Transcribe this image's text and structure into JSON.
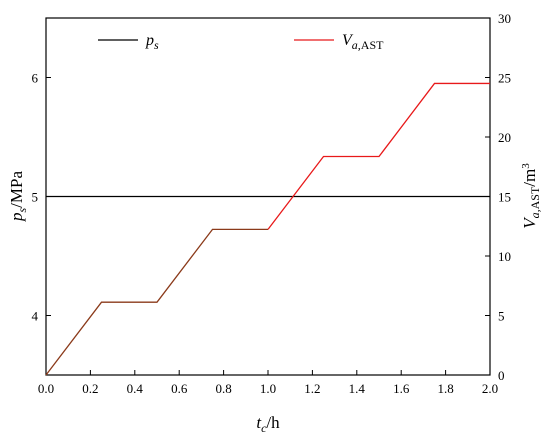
{
  "chart_data": {
    "type": "line",
    "x_axis": {
      "range": [
        0,
        2
      ],
      "ticks": [
        0,
        0.2,
        0.4,
        0.6,
        0.8,
        1.0,
        1.2,
        1.4,
        1.6,
        1.8,
        2.0
      ],
      "tick_labels": [
        "0.0",
        "0.2",
        "0.4",
        "0.6",
        "0.8",
        "1.0",
        "1.2",
        "1.4",
        "1.6",
        "1.8",
        "2.0"
      ],
      "label_main": "t",
      "label_sub": "c",
      "label_suffix": "/h"
    },
    "y_left": {
      "range": [
        3.5,
        6.5
      ],
      "ticks": [
        4,
        5,
        6
      ],
      "tick_labels": [
        "4",
        "5",
        "6"
      ],
      "label_main": "p",
      "label_sub": "s",
      "label_suffix": "/MPa"
    },
    "y_right": {
      "range": [
        0,
        30
      ],
      "ticks": [
        0,
        5,
        10,
        15,
        20,
        25,
        30
      ],
      "tick_labels": [
        "0",
        "5",
        "10",
        "15",
        "20",
        "25",
        "30"
      ],
      "label_main": "V",
      "label_sub": "a,",
      "label_sub2": "AST",
      "label_suffix": "/m",
      "label_sup": "3"
    },
    "series": [
      {
        "name_main": "p",
        "name_sub": "s",
        "axis": "left",
        "color": "#000000",
        "x": [
          0,
          2
        ],
        "y": [
          5,
          5
        ]
      },
      {
        "name_main": "V",
        "name_sub": "a,",
        "name_sub2": "AST",
        "axis": "right",
        "color": "#e8191a",
        "x": [
          0,
          0.25,
          0.5,
          0.75,
          1.0,
          1.25,
          1.5,
          1.75,
          2.0
        ],
        "y": [
          0,
          6.12,
          6.12,
          12.24,
          12.24,
          18.36,
          18.36,
          24.5,
          24.5
        ]
      }
    ],
    "overlap_color": "#8b3a1a",
    "overlap_until_x": 1.0,
    "legend_placement": "top",
    "grid": false
  }
}
